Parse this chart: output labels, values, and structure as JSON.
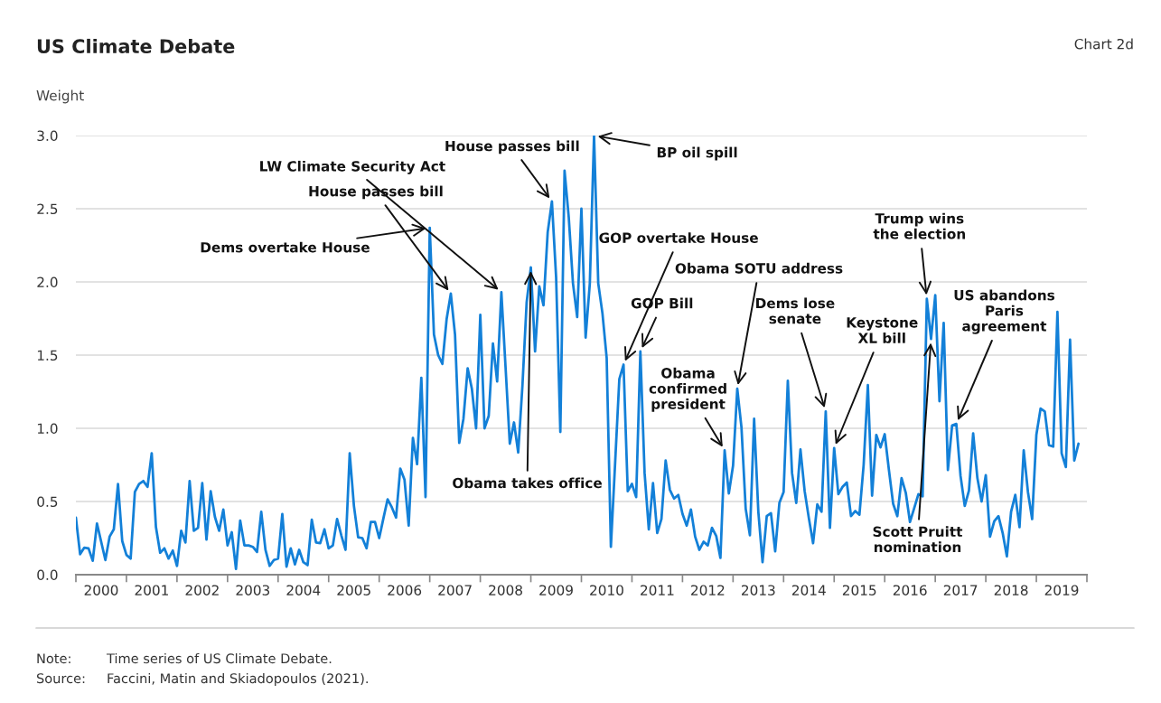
{
  "chart_data": {
    "type": "line",
    "title": "US Climate Debate",
    "subtitle": "Chart 2d",
    "ylabel": "Weight",
    "x": [
      "2000-01",
      "2000-02",
      "2000-03",
      "2000-04",
      "2000-05",
      "2000-06",
      "2000-08",
      "2000-09",
      "2000-10",
      "2000-11",
      "2000-12",
      "2001-01",
      "2001-02",
      "2001-03",
      "2001-04",
      "2001-05",
      "2001-06",
      "2001-07",
      "2001-08",
      "2001-09",
      "2001-10",
      "2001-11",
      "2001-12",
      "2002-01",
      "2002-02",
      "2002-03",
      "2002-04",
      "2002-05",
      "2002-06",
      "2002-07",
      "2002-08",
      "2002-09",
      "2002-10",
      "2002-11",
      "2002-12",
      "2003-01",
      "2003-02",
      "2003-03",
      "2003-04",
      "2003-05",
      "2003-06",
      "2003-07",
      "2003-08",
      "2003-09",
      "2003-10",
      "2003-11",
      "2003-12",
      "2004-01",
      "2004-02",
      "2004-03",
      "2004-04",
      "2004-05",
      "2004-06",
      "2004-07",
      "2004-08",
      "2004-09",
      "2004-10",
      "2004-11",
      "2004-12",
      "2005-01",
      "2005-02",
      "2005-03",
      "2005-04",
      "2005-05",
      "2005-06",
      "2005-07",
      "2005-08",
      "2005-09",
      "2005-10",
      "2005-11",
      "2005-12",
      "2006-01",
      "2006-02",
      "2006-03",
      "2006-04",
      "2006-05",
      "2006-06",
      "2006-07",
      "2006-08",
      "2006-09",
      "2006-10",
      "2006-11",
      "2006-12",
      "2007-01",
      "2007-02",
      "2007-03",
      "2007-04",
      "2007-05",
      "2007-06",
      "2007-07",
      "2007-08",
      "2007-09",
      "2007-10",
      "2007-11",
      "2007-12",
      "2008-01",
      "2008-02",
      "2008-03",
      "2008-04",
      "2008-05",
      "2008-06",
      "2008-07",
      "2008-08",
      "2008-09",
      "2008-10",
      "2008-11",
      "2008-12",
      "2009-01",
      "2009-02",
      "2009-03",
      "2009-04",
      "2009-05",
      "2009-06",
      "2009-07",
      "2009-08",
      "2009-09",
      "2009-10",
      "2009-11",
      "2009-12",
      "2010-01",
      "2010-02",
      "2010-03",
      "2010-04",
      "2010-05",
      "2010-06",
      "2010-07",
      "2010-08",
      "2010-09",
      "2010-10",
      "2010-11",
      "2010-12",
      "2011-01",
      "2011-02",
      "2011-03",
      "2011-04",
      "2011-05",
      "2011-06",
      "2011-07",
      "2011-08",
      "2011-09",
      "2011-10",
      "2011-11",
      "2011-12",
      "2012-01",
      "2012-02",
      "2012-03",
      "2012-04",
      "2012-05",
      "2012-06",
      "2012-07",
      "2012-08",
      "2012-09",
      "2012-10",
      "2012-11",
      "2012-12",
      "2013-01",
      "2013-02",
      "2013-03",
      "2013-04",
      "2013-05",
      "2013-06",
      "2013-07",
      "2013-08",
      "2013-09",
      "2013-10",
      "2013-11",
      "2013-12",
      "2014-01",
      "2014-02",
      "2014-03",
      "2014-04",
      "2014-05",
      "2014-06",
      "2014-07",
      "2014-08",
      "2014-09",
      "2014-10",
      "2014-11",
      "2014-12",
      "2015-01",
      "2015-02",
      "2015-03",
      "2015-04",
      "2015-05",
      "2015-06",
      "2015-07",
      "2015-08",
      "2015-09",
      "2015-10",
      "2015-11",
      "2015-12",
      "2016-01",
      "2016-02",
      "2016-03",
      "2016-04",
      "2016-05",
      "2016-06",
      "2016-07",
      "2016-08",
      "2016-09",
      "2016-10",
      "2016-11",
      "2016-12",
      "2017-01",
      "2017-02",
      "2017-03",
      "2017-04",
      "2017-05",
      "2017-06",
      "2017-07",
      "2017-08",
      "2017-09",
      "2017-10",
      "2017-11",
      "2017-12",
      "2018-01",
      "2018-02",
      "2018-03",
      "2018-04",
      "2018-05",
      "2018-06",
      "2018-07",
      "2018-08",
      "2018-09",
      "2018-10",
      "2018-11",
      "2018-12",
      "2019-01",
      "2019-02",
      "2019-03",
      "2019-04",
      "2019-05",
      "2019-06",
      "2019-07",
      "2019-08",
      "2019-09",
      "2019-10",
      "2019-11"
    ],
    "series": [
      {
        "color": "#1380d8",
        "values": [
          0.39,
          0.14,
          0.185,
          0.18,
          0.095,
          0.35,
          0.1,
          0.26,
          0.31,
          0.62,
          0.23,
          0.135,
          0.11,
          0.565,
          0.62,
          0.64,
          0.6,
          0.83,
          0.325,
          0.15,
          0.18,
          0.11,
          0.165,
          0.06,
          0.3,
          0.22,
          0.64,
          0.3,
          0.32,
          0.625,
          0.24,
          0.57,
          0.395,
          0.3,
          0.445,
          0.2,
          0.29,
          0.04,
          0.37,
          0.2,
          0.2,
          0.19,
          0.155,
          0.43,
          0.17,
          0.06,
          0.1,
          0.11,
          0.415,
          0.055,
          0.18,
          0.07,
          0.17,
          0.085,
          0.065,
          0.375,
          0.22,
          0.215,
          0.31,
          0.18,
          0.2,
          0.38,
          0.27,
          0.17,
          0.83,
          0.47,
          0.255,
          0.25,
          0.18,
          0.36,
          0.36,
          0.25,
          0.385,
          0.515,
          0.46,
          0.39,
          0.725,
          0.65,
          0.335,
          0.935,
          0.755,
          1.345,
          0.53,
          2.37,
          1.64,
          1.5,
          1.44,
          1.745,
          1.92,
          1.64,
          0.9,
          1.065,
          1.41,
          1.27,
          1.0,
          1.775,
          1.0,
          1.085,
          1.58,
          1.32,
          1.93,
          1.415,
          0.895,
          1.04,
          0.835,
          1.29,
          1.86,
          2.1,
          1.525,
          1.97,
          1.84,
          2.34,
          2.55,
          2.03,
          0.975,
          2.76,
          2.44,
          1.99,
          1.76,
          2.5,
          1.62,
          1.99,
          3.0,
          1.99,
          1.785,
          1.48,
          0.19,
          0.76,
          1.335,
          1.435,
          0.57,
          0.62,
          0.53,
          1.525,
          0.695,
          0.31,
          0.625,
          0.285,
          0.38,
          0.78,
          0.58,
          0.52,
          0.545,
          0.415,
          0.335,
          0.445,
          0.26,
          0.17,
          0.225,
          0.2,
          0.32,
          0.265,
          0.115,
          0.85,
          0.555,
          0.745,
          1.27,
          1.005,
          0.45,
          0.27,
          1.065,
          0.43,
          0.085,
          0.4,
          0.42,
          0.16,
          0.49,
          0.565,
          1.325,
          0.695,
          0.49,
          0.855,
          0.57,
          0.385,
          0.215,
          0.48,
          0.43,
          1.115,
          0.32,
          0.865,
          0.55,
          0.6,
          0.63,
          0.4,
          0.435,
          0.41,
          0.75,
          1.295,
          0.54,
          0.955,
          0.87,
          0.96,
          0.715,
          0.485,
          0.4,
          0.66,
          0.56,
          0.36,
          0.455,
          0.55,
          0.535,
          1.885,
          1.61,
          1.91,
          1.185,
          1.72,
          0.715,
          1.02,
          1.03,
          0.675,
          0.47,
          0.575,
          0.965,
          0.66,
          0.5,
          0.68,
          0.26,
          0.365,
          0.4,
          0.285,
          0.125,
          0.43,
          0.545,
          0.325,
          0.85,
          0.565,
          0.38,
          0.955,
          1.135,
          1.115,
          0.885,
          0.875,
          1.795,
          0.83,
          0.735,
          1.605,
          0.78,
          0.895
        ]
      }
    ],
    "xlim": [
      "2000-01",
      "2020-01"
    ],
    "xticks": [
      {
        "value": "2000-01",
        "label": null
      },
      {
        "value": "2000-07",
        "label": "2000"
      },
      {
        "value": "2001-01",
        "label": null
      },
      {
        "value": "2001-07",
        "label": "2001"
      },
      {
        "value": "2002-01",
        "label": null
      },
      {
        "value": "2002-07",
        "label": "2002"
      },
      {
        "value": "2003-01",
        "label": null
      },
      {
        "value": "2003-07",
        "label": "2003"
      },
      {
        "value": "2004-01",
        "label": null
      },
      {
        "value": "2004-07",
        "label": "2004"
      },
      {
        "value": "2005-01",
        "label": null
      },
      {
        "value": "2005-07",
        "label": "2005"
      },
      {
        "value": "2006-01",
        "label": null
      },
      {
        "value": "2006-07",
        "label": "2006"
      },
      {
        "value": "2007-01",
        "label": null
      },
      {
        "value": "2007-07",
        "label": "2007"
      },
      {
        "value": "2008-01",
        "label": null
      },
      {
        "value": "2008-07",
        "label": "2008"
      },
      {
        "value": "2009-01",
        "label": null
      },
      {
        "value": "2009-07",
        "label": "2009"
      },
      {
        "value": "2010-01",
        "label": null
      },
      {
        "value": "2010-07",
        "label": "2010"
      },
      {
        "value": "2011-01",
        "label": null
      },
      {
        "value": "2011-07",
        "label": "2011"
      },
      {
        "value": "2012-01",
        "label": null
      },
      {
        "value": "2012-07",
        "label": "2012"
      },
      {
        "value": "2013-01",
        "label": null
      },
      {
        "value": "2013-07",
        "label": "2013"
      },
      {
        "value": "2014-01",
        "label": null
      },
      {
        "value": "2014-07",
        "label": "2014"
      },
      {
        "value": "2015-01",
        "label": null
      },
      {
        "value": "2015-07",
        "label": "2015"
      },
      {
        "value": "2016-01",
        "label": null
      },
      {
        "value": "2016-07",
        "label": "2016"
      },
      {
        "value": "2017-01",
        "label": null
      },
      {
        "value": "2017-07",
        "label": "2017"
      },
      {
        "value": "2018-01",
        "label": null
      },
      {
        "value": "2018-07",
        "label": "2018"
      },
      {
        "value": "2019-01",
        "label": null
      },
      {
        "value": "2019-07",
        "label": "2019"
      },
      {
        "value": "2020-01",
        "label": null
      }
    ],
    "ylim": [
      0,
      3.0
    ],
    "yticks": [
      {
        "value": 0,
        "label": "0.0"
      },
      {
        "value": 0.5,
        "label": "0.5"
      },
      {
        "value": 1.0,
        "label": "1.0"
      },
      {
        "value": 1.5,
        "label": "1.5"
      },
      {
        "value": 2.0,
        "label": "2.0"
      },
      {
        "value": 2.5,
        "label": "2.5"
      },
      {
        "value": 3.0,
        "label": "3.0"
      }
    ],
    "grid": "y",
    "legend": false,
    "marker": "none",
    "line_style": "solid",
    "annotations": [
      {
        "text": "Dems overtake House",
        "x": "2007-01",
        "y": 2.37
      },
      {
        "text": "House passes bill",
        "x": "2007-06",
        "y": 1.92
      },
      {
        "text": "LW Climate Security Act",
        "x": "2008-06",
        "y": 1.93
      },
      {
        "text": "House passes bill",
        "x": "2009-06",
        "y": 2.55
      },
      {
        "text": "BP oil spill",
        "x": "2010-04",
        "y": 3.0
      },
      {
        "text": "Obama takes office",
        "x": "2009-01",
        "y": 2.1
      },
      {
        "text": "GOP overtake House",
        "x": "2010-11",
        "y": 1.435
      },
      {
        "text": "GOP Bill",
        "x": "2011-03",
        "y": 1.525
      },
      {
        "text": "Obama\nconfirmed\npresident",
        "x": "2012-11",
        "y": 0.85
      },
      {
        "text": "Obama SOTU address",
        "x": "2013-02",
        "y": 1.27
      },
      {
        "text": "Dems lose\nsenate",
        "x": "2014-11",
        "y": 1.115
      },
      {
        "text": "Keystone\nXL bill",
        "x": "2015-01",
        "y": 0.865
      },
      {
        "text": "Trump wins\nthe election",
        "x": "2016-11",
        "y": 1.885
      },
      {
        "text": "Scott Pruitt\nnomination",
        "x": "2016-12",
        "y": 1.61
      },
      {
        "text": "US abandons\nParis\nagreement",
        "x": "2017-06",
        "y": 1.03
      },
      "Note: Time series of US Climate Debate.",
      "Source: Faccini, Matin and Skiadopoulos (2021)."
    ]
  }
}
